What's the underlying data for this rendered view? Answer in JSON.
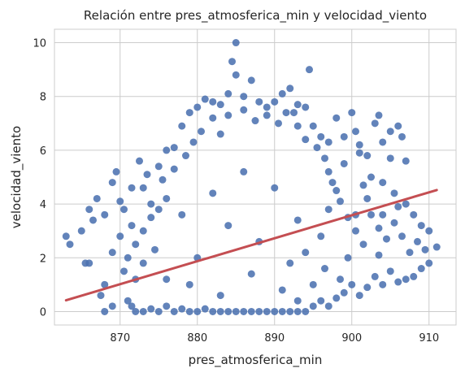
{
  "chart_data": {
    "type": "scatter",
    "title": "Relación entre pres_atmosferica_min y velocidad_viento",
    "xlabel": "pres_atmosferica_min",
    "ylabel": "velocidad_viento",
    "xlim": [
      861.5,
      913.5
    ],
    "ylim": [
      -0.5,
      10.5
    ],
    "xticks": [
      870,
      880,
      890,
      900,
      910
    ],
    "yticks": [
      0,
      2,
      4,
      6,
      8,
      10
    ],
    "grid": true,
    "point_color": "#4c72b0",
    "line_color": "#c44e52",
    "regression_line": {
      "x": [
        863,
        911
      ],
      "y": [
        0.42,
        4.52
      ]
    },
    "points": [
      [
        863,
        2.8
      ],
      [
        863.5,
        2.5
      ],
      [
        865,
        3.0
      ],
      [
        866,
        3.8
      ],
      [
        866.5,
        3.4
      ],
      [
        867,
        4.2
      ],
      [
        868,
        3.6
      ],
      [
        869.5,
        5.2
      ],
      [
        869,
        4.8
      ],
      [
        870,
        4.1
      ],
      [
        867.5,
        0.6
      ],
      [
        868,
        0.0
      ],
      [
        866,
        1.8
      ],
      [
        865.5,
        1.8
      ],
      [
        868,
        1.0
      ],
      [
        869,
        0.2
      ],
      [
        871,
        0.4
      ],
      [
        872,
        0.0
      ],
      [
        869,
        2.2
      ],
      [
        870,
        2.8
      ],
      [
        871.5,
        3.2
      ],
      [
        872.5,
        5.6
      ],
      [
        873,
        4.6
      ],
      [
        873.5,
        5.1
      ],
      [
        875,
        5.4
      ],
      [
        876,
        6.0
      ],
      [
        877,
        6.1
      ],
      [
        878,
        6.9
      ],
      [
        879,
        7.4
      ],
      [
        880,
        7.6
      ],
      [
        881,
        7.9
      ],
      [
        882,
        7.8
      ],
      [
        883,
        7.7
      ],
      [
        884,
        8.1
      ],
      [
        884.5,
        9.3
      ],
      [
        885,
        10.0
      ],
      [
        885,
        8.8
      ],
      [
        886,
        8.0
      ],
      [
        887,
        8.6
      ],
      [
        888,
        7.8
      ],
      [
        889,
        7.6
      ],
      [
        890,
        7.8
      ],
      [
        891,
        8.1
      ],
      [
        892,
        8.3
      ],
      [
        892.5,
        7.4
      ],
      [
        893,
        7.7
      ],
      [
        894,
        7.6
      ],
      [
        894.5,
        9.0
      ],
      [
        895,
        6.9
      ],
      [
        896,
        6.5
      ],
      [
        897,
        6.3
      ],
      [
        898,
        7.2
      ],
      [
        899,
        6.5
      ],
      [
        900,
        7.4
      ],
      [
        900.5,
        6.7
      ],
      [
        901,
        6.2
      ],
      [
        902,
        5.8
      ],
      [
        903,
        7.0
      ],
      [
        903.5,
        7.3
      ],
      [
        904,
        6.3
      ],
      [
        905,
        6.7
      ],
      [
        906,
        6.9
      ],
      [
        907,
        5.6
      ],
      [
        906.5,
        6.5
      ],
      [
        905,
        5.7
      ],
      [
        902.5,
        5.0
      ],
      [
        904,
        4.8
      ],
      [
        905.5,
        4.4
      ],
      [
        907,
        4.0
      ],
      [
        908,
        3.6
      ],
      [
        909,
        3.2
      ],
      [
        910,
        3.0
      ],
      [
        908.5,
        2.6
      ],
      [
        909.5,
        2.3
      ],
      [
        911,
        2.4
      ],
      [
        910,
        1.8
      ],
      [
        909,
        1.6
      ],
      [
        908,
        1.3
      ],
      [
        907,
        1.2
      ],
      [
        906,
        1.1
      ],
      [
        905,
        1.5
      ],
      [
        904,
        1.0
      ],
      [
        903,
        1.3
      ],
      [
        902,
        0.9
      ],
      [
        901,
        0.6
      ],
      [
        900,
        1.0
      ],
      [
        899,
        0.7
      ],
      [
        898,
        0.5
      ],
      [
        897,
        0.2
      ],
      [
        896,
        0.4
      ],
      [
        895,
        0.2
      ],
      [
        894,
        0.0
      ],
      [
        893,
        0.4
      ],
      [
        896.5,
        1.6
      ],
      [
        898.5,
        1.2
      ],
      [
        899.5,
        2.0
      ],
      [
        901.5,
        2.5
      ],
      [
        903.5,
        3.1
      ],
      [
        900.5,
        3.6
      ],
      [
        902,
        4.2
      ],
      [
        898,
        4.5
      ],
      [
        897,
        5.2
      ],
      [
        899,
        5.5
      ],
      [
        901,
        5.9
      ],
      [
        871.5,
        0.2
      ],
      [
        873,
        0.0
      ],
      [
        874,
        0.1
      ],
      [
        875,
        0.0
      ],
      [
        876,
        0.2
      ],
      [
        877,
        0.0
      ],
      [
        878,
        0.1
      ],
      [
        879,
        0.0
      ],
      [
        880,
        0.0
      ],
      [
        881,
        0.1
      ],
      [
        882,
        0.0
      ],
      [
        883,
        0.0
      ],
      [
        884,
        0.0
      ],
      [
        885,
        0.0
      ],
      [
        886,
        0.0
      ],
      [
        887,
        0.0
      ],
      [
        888,
        0.0
      ],
      [
        889,
        0.0
      ],
      [
        890,
        0.0
      ],
      [
        891,
        0.0
      ],
      [
        892,
        0.0
      ],
      [
        893,
        0.0
      ],
      [
        870.5,
        1.5
      ],
      [
        871,
        2.0
      ],
      [
        872,
        2.5
      ],
      [
        873,
        3.0
      ],
      [
        874,
        3.5
      ],
      [
        872,
        1.2
      ],
      [
        873,
        1.8
      ],
      [
        874.5,
        2.3
      ],
      [
        875,
        3.8
      ],
      [
        876,
        4.2
      ],
      [
        870.5,
        3.8
      ],
      [
        871.5,
        4.6
      ],
      [
        874,
        4.0
      ],
      [
        875.5,
        4.9
      ],
      [
        877,
        5.3
      ],
      [
        878.5,
        5.8
      ],
      [
        879.5,
        6.3
      ],
      [
        880.5,
        6.7
      ],
      [
        882,
        7.2
      ],
      [
        883,
        6.6
      ],
      [
        884,
        7.3
      ],
      [
        886,
        7.5
      ],
      [
        887.5,
        7.1
      ],
      [
        889,
        7.3
      ],
      [
        890.5,
        7.0
      ],
      [
        891.5,
        7.4
      ],
      [
        893,
        6.9
      ],
      [
        894,
        6.4
      ],
      [
        895.5,
        6.1
      ],
      [
        896.5,
        5.7
      ],
      [
        897.5,
        4.8
      ],
      [
        898.5,
        4.1
      ],
      [
        899.5,
        3.5
      ],
      [
        900.5,
        3.0
      ],
      [
        901.5,
        4.7
      ],
      [
        902.5,
        3.6
      ],
      [
        903.5,
        2.1
      ],
      [
        904.5,
        2.7
      ],
      [
        905.5,
        3.3
      ],
      [
        906.5,
        2.8
      ],
      [
        907.5,
        2.2
      ],
      [
        906,
        3.9
      ],
      [
        904,
        3.6
      ],
      [
        896,
        2.8
      ],
      [
        894,
        2.2
      ],
      [
        892,
        1.8
      ],
      [
        888,
        2.6
      ],
      [
        884,
        3.2
      ],
      [
        880,
        2.0
      ],
      [
        878,
        3.6
      ],
      [
        876,
        1.2
      ],
      [
        882,
        4.4
      ],
      [
        886,
        5.2
      ],
      [
        890,
        4.6
      ],
      [
        893,
        3.4
      ],
      [
        897,
        3.8
      ],
      [
        879,
        1.0
      ],
      [
        883,
        0.6
      ],
      [
        887,
        1.4
      ],
      [
        891,
        0.8
      ],
      [
        895,
        1.0
      ]
    ]
  }
}
